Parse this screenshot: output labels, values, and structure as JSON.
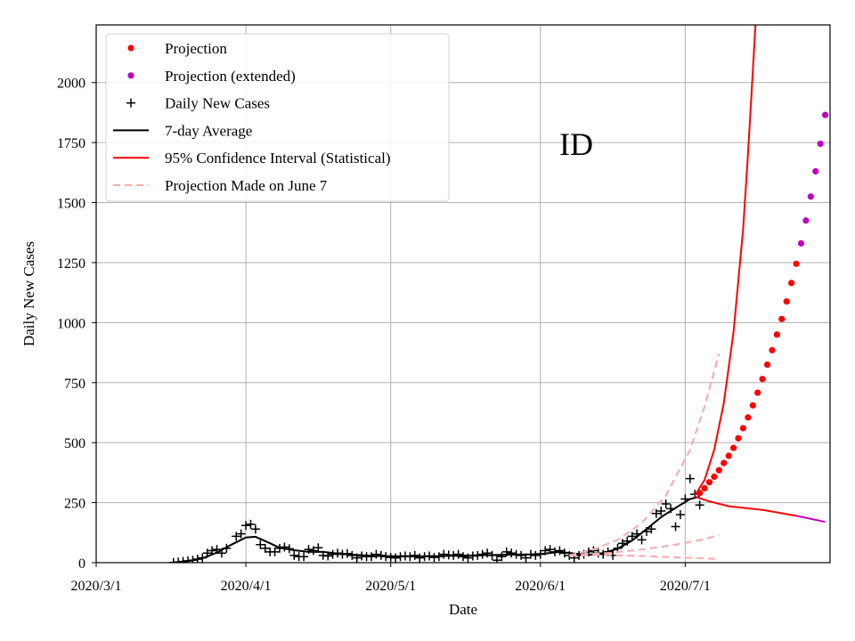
{
  "chart_data": {
    "type": "line",
    "title": "",
    "annotation": "ID",
    "xlabel": "Date",
    "ylabel": "Daily New Cases",
    "xlim": [
      "2020-03-01",
      "2020-07-31"
    ],
    "ylim": [
      0,
      2240
    ],
    "grid": true,
    "legend_position": "top-left",
    "x_ticks": [
      {
        "date": "2020-03-01",
        "label": "2020/3/1"
      },
      {
        "date": "2020-04-01",
        "label": "2020/4/1"
      },
      {
        "date": "2020-05-01",
        "label": "2020/5/1"
      },
      {
        "date": "2020-06-01",
        "label": "2020/6/1"
      },
      {
        "date": "2020-07-01",
        "label": "2020/7/1"
      }
    ],
    "y_ticks": [
      {
        "value": 0,
        "label": "0"
      },
      {
        "value": 250,
        "label": "250"
      },
      {
        "value": 500,
        "label": "500"
      },
      {
        "value": 750,
        "label": "750"
      },
      {
        "value": 1000,
        "label": "1000"
      },
      {
        "value": 1250,
        "label": "1250"
      },
      {
        "value": 1500,
        "label": "1500"
      },
      {
        "value": 1750,
        "label": "1750"
      },
      {
        "value": 2000,
        "label": "2000"
      }
    ],
    "colors": {
      "projection": "#ff0000",
      "projection_extended": "#bf00bf",
      "daily": "#000000",
      "avg": "#000000",
      "ci": "#ff0000",
      "june7": "#f4b0b0"
    },
    "legend": [
      {
        "key": "projection",
        "label": "Projection",
        "style": "dot"
      },
      {
        "key": "projection_extended",
        "label": "Projection (extended)",
        "style": "dot"
      },
      {
        "key": "daily",
        "label": "Daily New Cases",
        "style": "plus"
      },
      {
        "key": "avg",
        "label": "7-day Average",
        "style": "line"
      },
      {
        "key": "ci",
        "label": "95% Confidence Interval (Statistical)",
        "style": "line"
      },
      {
        "key": "june7",
        "label": "Projection Made on June 7",
        "style": "dashed"
      }
    ],
    "series": [
      {
        "key": "daily",
        "name": "Daily New Cases",
        "style": "plus",
        "points": [
          [
            "2020-03-17",
            1
          ],
          [
            "2020-03-18",
            3
          ],
          [
            "2020-03-19",
            5
          ],
          [
            "2020-03-20",
            8
          ],
          [
            "2020-03-21",
            10
          ],
          [
            "2020-03-22",
            15
          ],
          [
            "2020-03-23",
            20
          ],
          [
            "2020-03-24",
            40
          ],
          [
            "2020-03-25",
            50
          ],
          [
            "2020-03-26",
            55
          ],
          [
            "2020-03-27",
            40
          ],
          [
            "2020-03-28",
            60
          ],
          [
            "2020-03-30",
            110
          ],
          [
            "2020-03-31",
            120
          ],
          [
            "2020-04-01",
            155
          ],
          [
            "2020-04-02",
            160
          ],
          [
            "2020-04-03",
            140
          ],
          [
            "2020-04-04",
            75
          ],
          [
            "2020-04-05",
            60
          ],
          [
            "2020-04-06",
            45
          ],
          [
            "2020-04-07",
            45
          ],
          [
            "2020-04-08",
            60
          ],
          [
            "2020-04-09",
            65
          ],
          [
            "2020-04-10",
            58
          ],
          [
            "2020-04-11",
            30
          ],
          [
            "2020-04-12",
            25
          ],
          [
            "2020-04-13",
            25
          ],
          [
            "2020-04-14",
            55
          ],
          [
            "2020-04-15",
            50
          ],
          [
            "2020-04-16",
            62
          ],
          [
            "2020-04-17",
            30
          ],
          [
            "2020-04-18",
            28
          ],
          [
            "2020-04-19",
            35
          ],
          [
            "2020-04-20",
            40
          ],
          [
            "2020-04-21",
            35
          ],
          [
            "2020-04-22",
            38
          ],
          [
            "2020-04-23",
            30
          ],
          [
            "2020-04-24",
            20
          ],
          [
            "2020-04-25",
            28
          ],
          [
            "2020-04-26",
            25
          ],
          [
            "2020-04-27",
            25
          ],
          [
            "2020-04-28",
            35
          ],
          [
            "2020-04-29",
            30
          ],
          [
            "2020-04-30",
            25
          ],
          [
            "2020-05-01",
            22
          ],
          [
            "2020-05-02",
            20
          ],
          [
            "2020-05-03",
            25
          ],
          [
            "2020-05-04",
            28
          ],
          [
            "2020-05-05",
            25
          ],
          [
            "2020-05-06",
            30
          ],
          [
            "2020-05-07",
            20
          ],
          [
            "2020-05-08",
            25
          ],
          [
            "2020-05-09",
            28
          ],
          [
            "2020-05-10",
            22
          ],
          [
            "2020-05-11",
            25
          ],
          [
            "2020-05-12",
            35
          ],
          [
            "2020-05-13",
            32
          ],
          [
            "2020-05-14",
            30
          ],
          [
            "2020-05-15",
            35
          ],
          [
            "2020-05-16",
            25
          ],
          [
            "2020-05-17",
            20
          ],
          [
            "2020-05-18",
            28
          ],
          [
            "2020-05-19",
            30
          ],
          [
            "2020-05-20",
            35
          ],
          [
            "2020-05-21",
            40
          ],
          [
            "2020-05-22",
            30
          ],
          [
            "2020-05-23",
            10
          ],
          [
            "2020-05-24",
            25
          ],
          [
            "2020-05-25",
            45
          ],
          [
            "2020-05-26",
            40
          ],
          [
            "2020-05-27",
            35
          ],
          [
            "2020-05-28",
            30
          ],
          [
            "2020-05-29",
            20
          ],
          [
            "2020-05-30",
            35
          ],
          [
            "2020-05-31",
            30
          ],
          [
            "2020-06-01",
            35
          ],
          [
            "2020-06-02",
            50
          ],
          [
            "2020-06-03",
            55
          ],
          [
            "2020-06-04",
            45
          ],
          [
            "2020-06-05",
            50
          ],
          [
            "2020-06-06",
            40
          ],
          [
            "2020-06-07",
            30
          ],
          [
            "2020-06-08",
            20
          ],
          [
            "2020-06-09",
            30
          ],
          [
            "2020-06-10",
            35
          ],
          [
            "2020-06-11",
            45
          ],
          [
            "2020-06-12",
            50
          ],
          [
            "2020-06-13",
            40
          ],
          [
            "2020-06-14",
            35
          ],
          [
            "2020-06-15",
            45
          ],
          [
            "2020-06-16",
            30
          ],
          [
            "2020-06-17",
            60
          ],
          [
            "2020-06-18",
            80
          ],
          [
            "2020-06-19",
            90
          ],
          [
            "2020-06-20",
            110
          ],
          [
            "2020-06-21",
            120
          ],
          [
            "2020-06-22",
            95
          ],
          [
            "2020-06-23",
            130
          ],
          [
            "2020-06-24",
            140
          ],
          [
            "2020-06-25",
            205
          ],
          [
            "2020-06-26",
            215
          ],
          [
            "2020-06-27",
            245
          ],
          [
            "2020-06-28",
            225
          ],
          [
            "2020-06-29",
            150
          ],
          [
            "2020-06-30",
            200
          ],
          [
            "2020-07-01",
            265
          ],
          [
            "2020-07-02",
            350
          ],
          [
            "2020-07-03",
            285
          ],
          [
            "2020-07-04",
            240
          ]
        ]
      },
      {
        "key": "avg",
        "name": "7-day Average",
        "style": "line",
        "points": [
          [
            "2020-03-17",
            1
          ],
          [
            "2020-03-20",
            6
          ],
          [
            "2020-03-23",
            18
          ],
          [
            "2020-03-26",
            42
          ],
          [
            "2020-03-29",
            75
          ],
          [
            "2020-04-01",
            105
          ],
          [
            "2020-04-03",
            108
          ],
          [
            "2020-04-05",
            90
          ],
          [
            "2020-04-08",
            62
          ],
          [
            "2020-04-11",
            52
          ],
          [
            "2020-04-14",
            45
          ],
          [
            "2020-04-17",
            45
          ],
          [
            "2020-04-20",
            38
          ],
          [
            "2020-04-24",
            32
          ],
          [
            "2020-04-28",
            28
          ],
          [
            "2020-05-01",
            27
          ],
          [
            "2020-05-05",
            26
          ],
          [
            "2020-05-10",
            27
          ],
          [
            "2020-05-15",
            29
          ],
          [
            "2020-05-20",
            31
          ],
          [
            "2020-05-25",
            33
          ],
          [
            "2020-05-30",
            34
          ],
          [
            "2020-06-02",
            38
          ],
          [
            "2020-06-05",
            45
          ],
          [
            "2020-06-08",
            38
          ],
          [
            "2020-06-11",
            32
          ],
          [
            "2020-06-14",
            40
          ],
          [
            "2020-06-17",
            58
          ],
          [
            "2020-06-20",
            92
          ],
          [
            "2020-06-23",
            140
          ],
          [
            "2020-06-26",
            190
          ],
          [
            "2020-06-29",
            228
          ],
          [
            "2020-07-02",
            265
          ],
          [
            "2020-07-04",
            275
          ]
        ]
      },
      {
        "key": "projection",
        "name": "Projection",
        "style": "dot",
        "points": [
          [
            "2020-07-04",
            290
          ],
          [
            "2020-07-05",
            310
          ],
          [
            "2020-07-06",
            335
          ],
          [
            "2020-07-07",
            358
          ],
          [
            "2020-07-08",
            385
          ],
          [
            "2020-07-09",
            415
          ],
          [
            "2020-07-10",
            445
          ],
          [
            "2020-07-11",
            478
          ],
          [
            "2020-07-12",
            518
          ],
          [
            "2020-07-13",
            560
          ],
          [
            "2020-07-14",
            605
          ],
          [
            "2020-07-15",
            655
          ],
          [
            "2020-07-16",
            708
          ],
          [
            "2020-07-17",
            765
          ],
          [
            "2020-07-18",
            825
          ],
          [
            "2020-07-19",
            885
          ],
          [
            "2020-07-20",
            950
          ],
          [
            "2020-07-21",
            1015
          ],
          [
            "2020-07-22",
            1088
          ],
          [
            "2020-07-23",
            1165
          ],
          [
            "2020-07-24",
            1245
          ]
        ]
      },
      {
        "key": "projection_extended",
        "name": "Projection (extended)",
        "style": "dot",
        "points": [
          [
            "2020-07-25",
            1330
          ],
          [
            "2020-07-26",
            1425
          ],
          [
            "2020-07-27",
            1525
          ],
          [
            "2020-07-28",
            1630
          ],
          [
            "2020-07-29",
            1745
          ],
          [
            "2020-07-30",
            1865
          ]
        ]
      },
      {
        "key": "ci",
        "name": "95% Confidence Interval (Statistical)",
        "style": "line",
        "points": [
          [
            "2020-07-03",
            280
          ],
          [
            "2020-07-05",
            345
          ],
          [
            "2020-07-07",
            470
          ],
          [
            "2020-07-09",
            665
          ],
          [
            "2020-07-11",
            960
          ],
          [
            "2020-07-13",
            1390
          ],
          [
            "2020-07-14",
            1700
          ],
          [
            "2020-07-15",
            2050
          ],
          [
            "2020-07-16",
            2400
          ]
        ]
      },
      {
        "key": "ci",
        "name": "95% Confidence Interval (Statistical)",
        "style": "line",
        "points": [
          [
            "2020-07-03",
            275
          ],
          [
            "2020-07-06",
            255
          ],
          [
            "2020-07-10",
            235
          ],
          [
            "2020-07-17",
            220
          ],
          [
            "2020-07-24",
            195
          ]
        ]
      },
      {
        "key": "projection_extended",
        "name": "Projection (extended)",
        "style": "line",
        "points": [
          [
            "2020-07-24",
            195
          ],
          [
            "2020-07-30",
            170
          ]
        ]
      },
      {
        "key": "june7",
        "name": "Projection Made on June 7",
        "style": "dashed",
        "points": [
          [
            "2020-06-07",
            30
          ],
          [
            "2020-06-12",
            55
          ],
          [
            "2020-06-17",
            95
          ],
          [
            "2020-06-22",
            165
          ],
          [
            "2020-06-27",
            280
          ],
          [
            "2020-07-02",
            470
          ],
          [
            "2020-07-05",
            650
          ],
          [
            "2020-07-08",
            870
          ]
        ]
      },
      {
        "key": "june7",
        "name": "Projection Made on June 7",
        "style": "dashed",
        "points": [
          [
            "2020-06-07",
            30
          ],
          [
            "2020-06-15",
            40
          ],
          [
            "2020-06-22",
            55
          ],
          [
            "2020-06-29",
            75
          ],
          [
            "2020-07-05",
            98
          ],
          [
            "2020-07-08",
            115
          ]
        ]
      },
      {
        "key": "june7",
        "name": "Projection Made on June 7",
        "style": "dashed",
        "points": [
          [
            "2020-06-07",
            30
          ],
          [
            "2020-06-15",
            32
          ],
          [
            "2020-06-22",
            28
          ],
          [
            "2020-06-29",
            22
          ],
          [
            "2020-07-05",
            18
          ],
          [
            "2020-07-08",
            15
          ]
        ]
      }
    ]
  }
}
